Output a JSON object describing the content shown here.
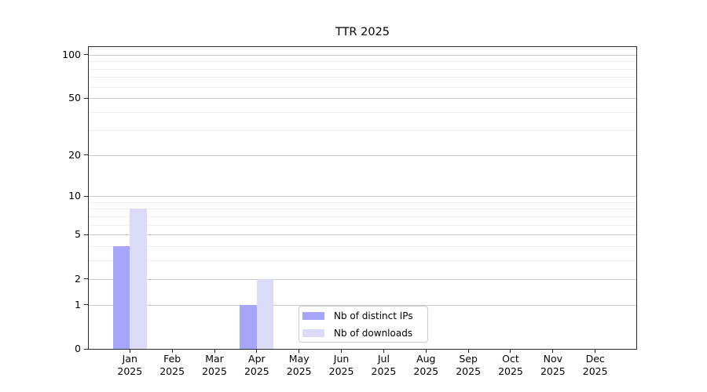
{
  "chart_data": {
    "type": "bar",
    "title": "TTR 2025",
    "xlabel": "",
    "ylabel": "",
    "categories": [
      "Jan",
      "Feb",
      "Mar",
      "Apr",
      "May",
      "Jun",
      "Jul",
      "Aug",
      "Sep",
      "Oct",
      "Nov",
      "Dec"
    ],
    "x_tick_year": "2025",
    "series": [
      {
        "name": "Nb of distinct IPs",
        "color": "#a6a6f8",
        "values": [
          4,
          0,
          0,
          1,
          0,
          0,
          0,
          0,
          0,
          0,
          0,
          0
        ]
      },
      {
        "name": "Nb of downloads",
        "color": "#dbdbf9",
        "values": [
          8,
          0,
          0,
          2,
          0,
          0,
          0,
          0,
          0,
          0,
          0,
          0
        ]
      }
    ],
    "yscale": "log1p",
    "ylim": [
      0,
      113
    ],
    "y_ticks": [
      0,
      1,
      2,
      5,
      10,
      20,
      50,
      100
    ],
    "y_minor_ticks": [
      3,
      4,
      6,
      7,
      8,
      9,
      30,
      40,
      60,
      70,
      80,
      90,
      110
    ],
    "grid": true,
    "legend_position": "lower center",
    "colors": {
      "major_grid": "#c9c9c9",
      "minor_grid": "#ededed",
      "spine": "#2a2a2a",
      "text": "#000000"
    }
  }
}
